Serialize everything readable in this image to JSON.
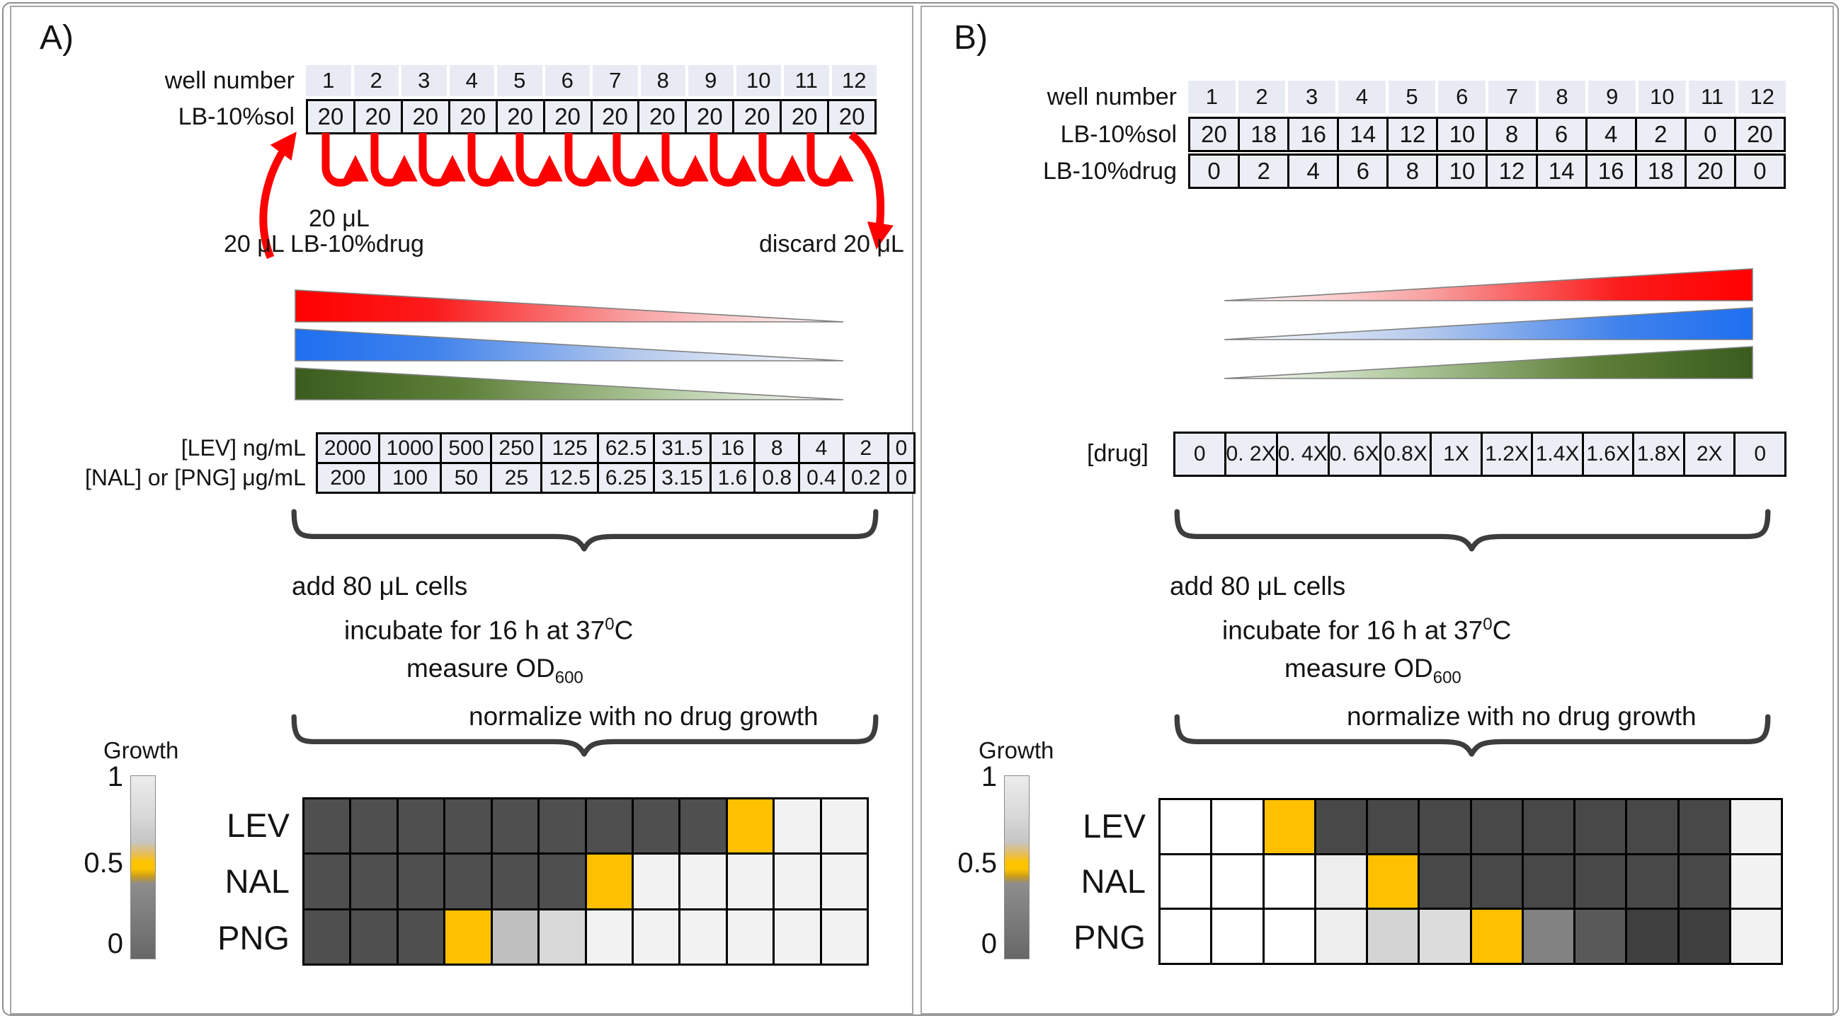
{
  "panel_a": {
    "label": "A)",
    "well_table": {
      "header_label": "well number",
      "well_numbers": [
        "1",
        "2",
        "3",
        "4",
        "5",
        "6",
        "7",
        "8",
        "9",
        "10",
        "11",
        "12"
      ],
      "rows": [
        {
          "label": "LB-10%sol",
          "values": [
            "20",
            "20",
            "20",
            "20",
            "20",
            "20",
            "20",
            "20",
            "20",
            "20",
            "20",
            "20"
          ]
        }
      ]
    },
    "transfer": {
      "step_volume": "20 μL",
      "input_label": "20 μL LB-10%drug",
      "discard_label": "discard 20 μL",
      "arrow_color": "#fe0000"
    },
    "gradient_wedges": {
      "direction": "decreasing-left-to-right",
      "colors": [
        "#ff0000",
        "#1f6ff0",
        "#3a5c1e"
      ]
    },
    "conc_table": {
      "rows": [
        {
          "label": "[LEV] ng/mL",
          "values": [
            "2000",
            "1000",
            "500",
            "250",
            "125",
            "62.5",
            "31.5",
            "16",
            "8",
            "4",
            "2",
            "0"
          ]
        },
        {
          "label": "[NAL] or [PNG] μg/mL",
          "values": [
            "200",
            "100",
            "50",
            "25",
            "12.5",
            "6.25",
            "3.15",
            "1.6",
            "0.8",
            "0.4",
            "0.2",
            "0"
          ]
        }
      ]
    },
    "protocol": {
      "line1": "add 80 μL cells",
      "line2_pre": "incubate for 16 h at 37",
      "line2_sup": "0",
      "line2_post": "C",
      "line3_pre": "measure OD",
      "line3_sub": "600",
      "line4": "normalize with no drug growth"
    },
    "colorbar": {
      "title": "Growth",
      "tick_top": "1",
      "tick_mid": "0.5",
      "tick_bottom": "0",
      "mid_color": "#ffc000"
    },
    "heatmap": {
      "rows": [
        {
          "label": "LEV",
          "cells": [
            "#4f4f4f",
            "#4f4f4f",
            "#4f4f4f",
            "#4f4f4f",
            "#4f4f4f",
            "#4f4f4f",
            "#4f4f4f",
            "#4f4f4f",
            "#4f4f4f",
            "#ffc000",
            "#f2f2f2",
            "#f2f2f2"
          ]
        },
        {
          "label": "NAL",
          "cells": [
            "#4f4f4f",
            "#4f4f4f",
            "#4f4f4f",
            "#4f4f4f",
            "#4f4f4f",
            "#4f4f4f",
            "#ffc000",
            "#f2f2f2",
            "#f2f2f2",
            "#f2f2f2",
            "#f2f2f2",
            "#f2f2f2"
          ]
        },
        {
          "label": "PNG",
          "cells": [
            "#4f4f4f",
            "#4f4f4f",
            "#4f4f4f",
            "#ffc000",
            "#bfbfbf",
            "#d8d8d8",
            "#f2f2f2",
            "#f2f2f2",
            "#f2f2f2",
            "#f2f2f2",
            "#f2f2f2",
            "#f2f2f2"
          ]
        }
      ]
    }
  },
  "panel_b": {
    "label": "B)",
    "well_table": {
      "header_label": "well number",
      "well_numbers": [
        "1",
        "2",
        "3",
        "4",
        "5",
        "6",
        "7",
        "8",
        "9",
        "10",
        "11",
        "12"
      ],
      "rows": [
        {
          "label": "LB-10%sol",
          "values": [
            "20",
            "18",
            "16",
            "14",
            "12",
            "10",
            "8",
            "6",
            "4",
            "2",
            "0",
            "20"
          ]
        },
        {
          "label": "LB-10%drug",
          "values": [
            "0",
            "2",
            "4",
            "6",
            "8",
            "10",
            "12",
            "14",
            "16",
            "18",
            "20",
            "0"
          ]
        }
      ]
    },
    "gradient_wedges": {
      "direction": "increasing-left-to-right",
      "colors": [
        "#ff0000",
        "#1f6ff0",
        "#3a5c1e"
      ]
    },
    "drug_table": {
      "label": "[drug]",
      "values": [
        "0",
        "0. 2X",
        "0. 4X",
        "0. 6X",
        "0.8X",
        "1X",
        "1.2X",
        "1.4X",
        "1.6X",
        "1.8X",
        "2X",
        "0"
      ]
    },
    "protocol": {
      "line1": "add 80 μL cells",
      "line2_pre": "incubate for 16 h at 37",
      "line2_sup": "0",
      "line2_post": "C",
      "line3_pre": "measure OD",
      "line3_sub": "600",
      "line4": "normalize with no drug growth"
    },
    "colorbar": {
      "title": "Growth",
      "tick_top": "1",
      "tick_mid": "0.5",
      "tick_bottom": "0",
      "mid_color": "#ffc000"
    },
    "heatmap": {
      "rows": [
        {
          "label": "LEV",
          "cells": [
            "#ffffff",
            "#ffffff",
            "#ffc000",
            "#484848",
            "#484848",
            "#484848",
            "#484848",
            "#484848",
            "#484848",
            "#484848",
            "#484848",
            "#f2f2f2"
          ]
        },
        {
          "label": "NAL",
          "cells": [
            "#ffffff",
            "#ffffff",
            "#ffffff",
            "#ededed",
            "#ffc000",
            "#484848",
            "#484848",
            "#484848",
            "#484848",
            "#484848",
            "#484848",
            "#f2f2f2"
          ]
        },
        {
          "label": "PNG",
          "cells": [
            "#ffffff",
            "#ffffff",
            "#ffffff",
            "#ededed",
            "#d4d4d4",
            "#dcdcdc",
            "#ffc000",
            "#828282",
            "#595959",
            "#3f3f3f",
            "#3f3f3f",
            "#f2f2f2"
          ]
        }
      ]
    }
  }
}
